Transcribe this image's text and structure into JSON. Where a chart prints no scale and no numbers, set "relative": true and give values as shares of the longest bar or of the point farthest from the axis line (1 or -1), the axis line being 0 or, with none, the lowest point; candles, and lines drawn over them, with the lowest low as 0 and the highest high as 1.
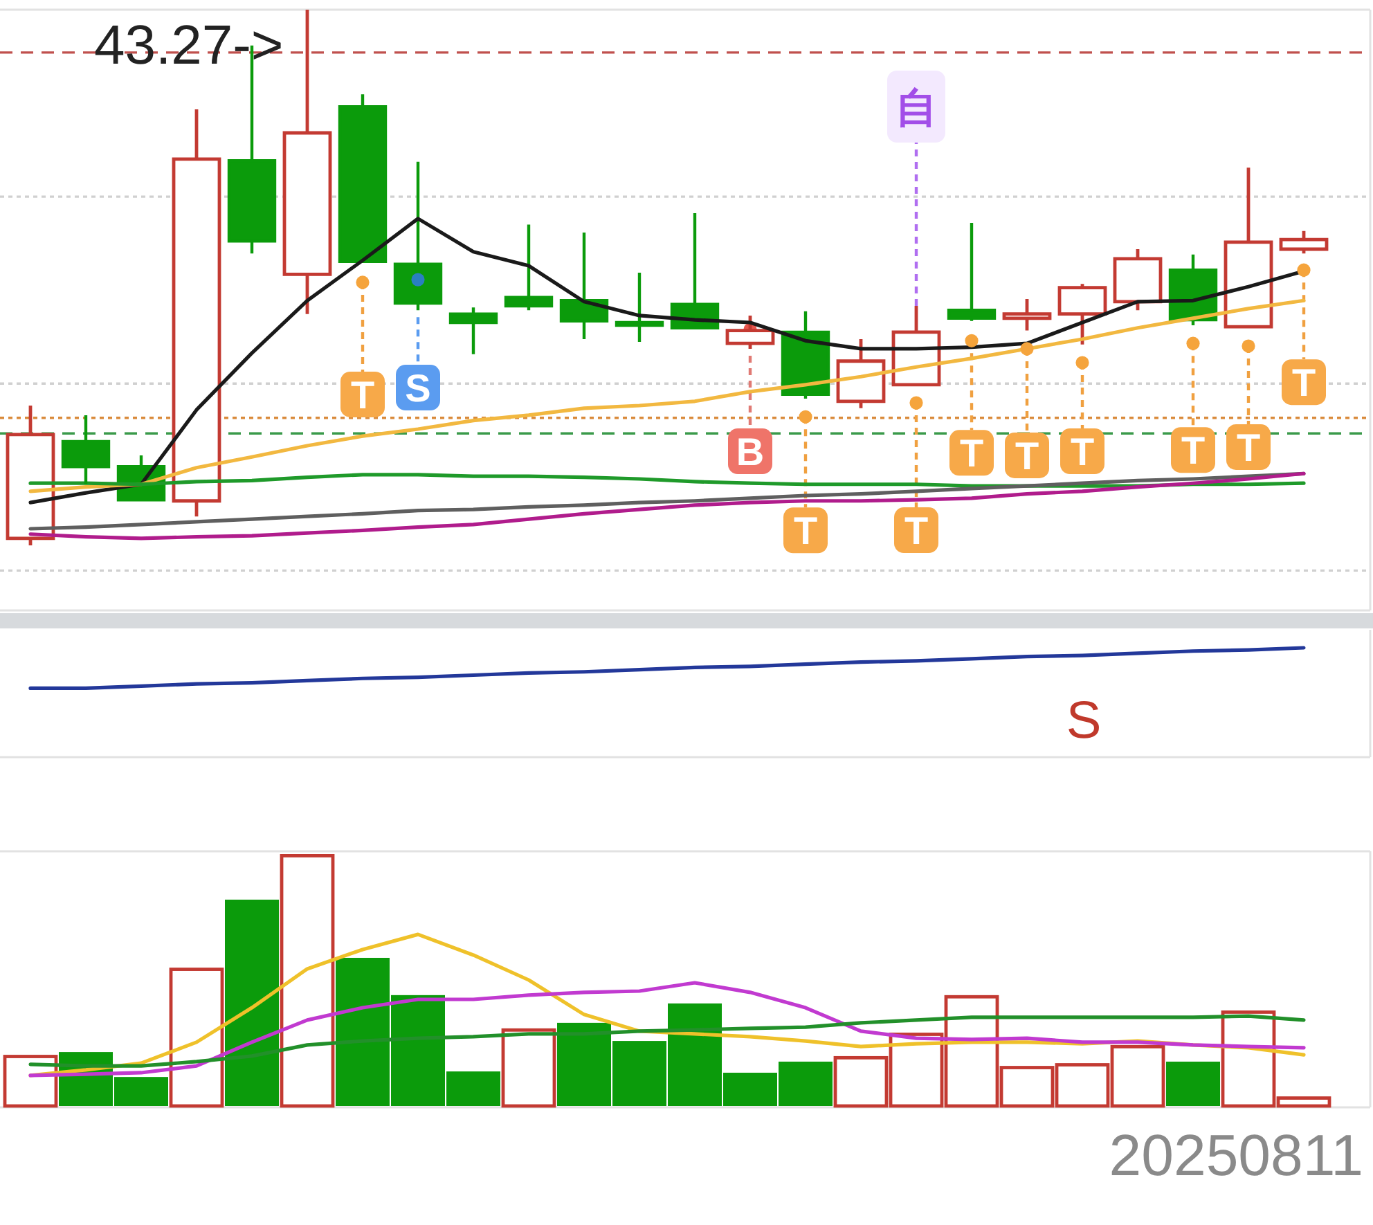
{
  "chart_data": [
    {
      "type": "candlestick",
      "relative": true,
      "categories": [
        null,
        null,
        null,
        null,
        null,
        null,
        null,
        null,
        null,
        null,
        null,
        null,
        null,
        null,
        null,
        null,
        null,
        null,
        null,
        null,
        null,
        null,
        null,
        null
      ],
      "ohlc": [
        [
          0.013,
          0.261,
          0,
          0.207
        ],
        [
          0.194,
          0.243,
          0.114,
          0.147
        ],
        [
          0.147,
          0.168,
          0.085,
          0.085
        ],
        [
          0.083,
          0.814,
          0.054,
          0.721
        ],
        [
          0.718,
          0.933,
          0.545,
          0.568
        ],
        [
          0.506,
          1,
          0.432,
          0.77
        ],
        [
          0.819,
          0.842,
          0.53,
          0.53
        ],
        [
          0.525,
          0.716,
          0.439,
          0.452
        ],
        [
          0.432,
          0.444,
          0.357,
          0.416
        ],
        [
          0.463,
          0.599,
          0.439,
          0.447
        ],
        [
          0.457,
          0.584,
          0.385,
          0.419
        ],
        [
          0.416,
          0.509,
          0.38,
          0.413
        ],
        [
          0.45,
          0.62,
          0.403,
          0.406
        ],
        [
          0.377,
          0.429,
          0.367,
          0.401
        ],
        [
          0.398,
          0.437,
          0.274,
          0.282
        ],
        [
          0.269,
          0.385,
          0.256,
          0.344
        ],
        [
          0.3,
          0.447,
          0.3,
          0.398
        ],
        [
          0.439,
          0.602,
          0.419,
          0.424
        ],
        [
          0.424,
          0.46,
          0.401,
          0.432
        ],
        [
          0.432,
          0.488,
          0.375,
          0.481
        ],
        [
          0.455,
          0.553,
          0.439,
          0.535
        ],
        [
          0.514,
          0.543,
          0.411,
          0.421
        ],
        [
          0.408,
          0.705,
          0.408,
          0.566
        ],
        [
          0.553,
          0.587,
          0.545,
          0.571
        ]
      ],
      "colors": [
        "#c33a32",
        "#0b9b0b",
        "#0b9b0b",
        "#c33a32",
        "#0b9b0b",
        "#c33a32",
        "#0b9b0b",
        "#0b9b0b",
        "#0b9b0b",
        "#0b9b0b",
        "#0b9b0b",
        "#0b9b0b",
        "#0b9b0b",
        "#c33a32",
        "#0b9b0b",
        "#c33a32",
        "#c33a32",
        "#0b9b0b",
        "#c33a32",
        "#c33a32",
        "#c33a32",
        "#0b9b0b",
        "#c33a32",
        "#c33a32"
      ],
      "series": [
        {
          "type": "line",
          "color": "#1a1a1a",
          "values": [
            0.08,
            0.098,
            0.114,
            0.253,
            0.359,
            0.457,
            0.532,
            0.61,
            0.548,
            0.522,
            0.455,
            0.429,
            0.421,
            0.416,
            0.382,
            0.367,
            0.367,
            0.37,
            0.377,
            0.416,
            0.455,
            0.457,
            0.483,
            0.512
          ]
        },
        {
          "type": "line",
          "color": "#f2b840",
          "values": [
            0.101,
            0.109,
            0.114,
            0.145,
            0.165,
            0.186,
            0.204,
            0.217,
            0.233,
            0.243,
            0.256,
            0.261,
            0.269,
            0.287,
            0.3,
            0.315,
            0.333,
            0.349,
            0.367,
            0.385,
            0.406,
            0.424,
            0.442,
            0.457
          ]
        },
        {
          "type": "line",
          "color": "#1f9a2a",
          "values": [
            0.116,
            0.116,
            0.114,
            0.119,
            0.121,
            0.127,
            0.132,
            0.132,
            0.129,
            0.129,
            0.127,
            0.124,
            0.119,
            0.116,
            0.114,
            0.114,
            0.114,
            0.111,
            0.111,
            0.111,
            0.111,
            0.114,
            0.114,
            0.116
          ]
        },
        {
          "type": "line",
          "color": "#5f5f5f",
          "values": [
            0.031,
            0.034,
            0.039,
            0.044,
            0.049,
            0.054,
            0.059,
            0.065,
            0.067,
            0.072,
            0.075,
            0.08,
            0.083,
            0.088,
            0.093,
            0.096,
            0.101,
            0.106,
            0.111,
            0.116,
            0.121,
            0.124,
            0.129,
            0.134
          ]
        },
        {
          "type": "line",
          "color": "#b01c8c",
          "values": [
            0.021,
            0.016,
            0.013,
            0.016,
            0.018,
            0.023,
            0.028,
            0.034,
            0.039,
            0.049,
            0.059,
            0.067,
            0.075,
            0.08,
            0.083,
            0.083,
            0.085,
            0.088,
            0.096,
            0.101,
            0.109,
            0.116,
            0.124,
            0.134
          ]
        }
      ],
      "ref_lines": [
        {
          "axis": "y",
          "value": 0.651,
          "color": "#d0d0d0",
          "line_style": "dotted"
        },
        {
          "axis": "y",
          "value": 0.302,
          "color": "#d0d0d0",
          "line_style": "dotted"
        },
        {
          "axis": "y",
          "value": -0.047,
          "color": "#d0d0d0",
          "line_style": "dotted"
        },
        {
          "axis": "y",
          "value": 0.92,
          "color": "#c0504d",
          "line_style": "dashed"
        },
        {
          "axis": "y",
          "value": 0.238,
          "color": "#d98a3a",
          "line_style": "dotted"
        },
        {
          "axis": "y",
          "value": 0.209,
          "color": "#3a9a4a",
          "line_style": "dashed"
        }
      ],
      "annotations": [
        "43.27->",
        {
          "text": "T",
          "y": 0.491
        },
        {
          "text": "S",
          "y": 0.496
        },
        {
          "text": "B",
          "y": 0.403
        },
        {
          "text": "T",
          "y": 0.24
        },
        {
          "text": "自",
          "y": 0.447
        },
        {
          "text": "T",
          "y": 0.266
        },
        {
          "text": "T",
          "y": 0.382
        },
        {
          "text": "T",
          "y": 0.367
        },
        {
          "text": "T",
          "y": 0.341
        },
        {
          "text": "T",
          "y": 0.377
        },
        {
          "text": "T",
          "y": 0.372
        },
        {
          "text": "T",
          "y": 0.514
        }
      ]
    },
    {
      "type": "line",
      "relative": true,
      "color": "#23389a",
      "categories": [
        null,
        null,
        null,
        null,
        null,
        null,
        null,
        null,
        null,
        null,
        null,
        null,
        null,
        null,
        null,
        null,
        null,
        null,
        null,
        null,
        null,
        null,
        null,
        null
      ],
      "values": [
        0.63,
        0.63,
        0.65,
        0.67,
        0.68,
        0.7,
        0.72,
        0.73,
        0.75,
        0.77,
        0.78,
        0.8,
        0.82,
        0.83,
        0.85,
        0.87,
        0.88,
        0.9,
        0.92,
        0.93,
        0.95,
        0.97,
        0.98,
        1
      ],
      "annotations": [
        "S"
      ]
    },
    {
      "type": "bar",
      "relative": true,
      "categories": [
        null,
        null,
        null,
        null,
        null,
        null,
        null,
        null,
        null,
        null,
        null,
        null,
        null,
        null,
        null,
        null,
        null,
        null,
        null,
        null,
        null,
        null,
        null,
        null
      ],
      "series": [
        {
          "type": "bar",
          "values": [
            0.203,
            0.214,
            0.115,
            0.549,
            0.819,
            1,
            0.588,
            0.44,
            0.137,
            0.308,
            0.33,
            0.258,
            0.407,
            0.132,
            0.176,
            0.198,
            0.291,
            0.44,
            0.159,
            0.17,
            0.242,
            0.176,
            0.379,
            0.038
          ],
          "colors": [
            "#c33a32",
            "#0b9b0b",
            "#0b9b0b",
            "#c33a32",
            "#0b9b0b",
            "#c33a32",
            "#0b9b0b",
            "#0b9b0b",
            "#0b9b0b",
            "#c33a32",
            "#0b9b0b",
            "#0b9b0b",
            "#0b9b0b",
            "#0b9b0b",
            "#0b9b0b",
            "#c33a32",
            "#c33a32",
            "#c33a32",
            "#c33a32",
            "#c33a32",
            "#c33a32",
            "#0b9b0b",
            "#c33a32",
            "#c33a32"
          ]
        },
        {
          "type": "line",
          "color": "#efc12a",
          "values": [
            0.121,
            0.143,
            0.17,
            0.253,
            0.39,
            0.544,
            0.621,
            0.681,
            0.599,
            0.5,
            0.363,
            0.297,
            0.286,
            0.275,
            0.258,
            0.236,
            0.247,
            0.253,
            0.253,
            0.247,
            0.258,
            0.242,
            0.231,
            0.203
          ]
        },
        {
          "type": "line",
          "color": "#c13ad0",
          "values": [
            0.121,
            0.126,
            0.132,
            0.159,
            0.253,
            0.341,
            0.39,
            0.423,
            0.423,
            0.44,
            0.451,
            0.456,
            0.489,
            0.451,
            0.39,
            0.297,
            0.269,
            0.264,
            0.269,
            0.253,
            0.253,
            0.242,
            0.236,
            0.231
          ]
        },
        {
          "type": "line",
          "color": "#22902a",
          "values": [
            0.165,
            0.159,
            0.159,
            0.176,
            0.198,
            0.242,
            0.258,
            0.269,
            0.275,
            0.286,
            0.286,
            0.297,
            0.302,
            0.308,
            0.313,
            0.33,
            0.341,
            0.352,
            0.352,
            0.352,
            0.352,
            0.352,
            0.357,
            0.341
          ]
        }
      ],
      "annotations": [
        "20250811"
      ]
    }
  ]
}
